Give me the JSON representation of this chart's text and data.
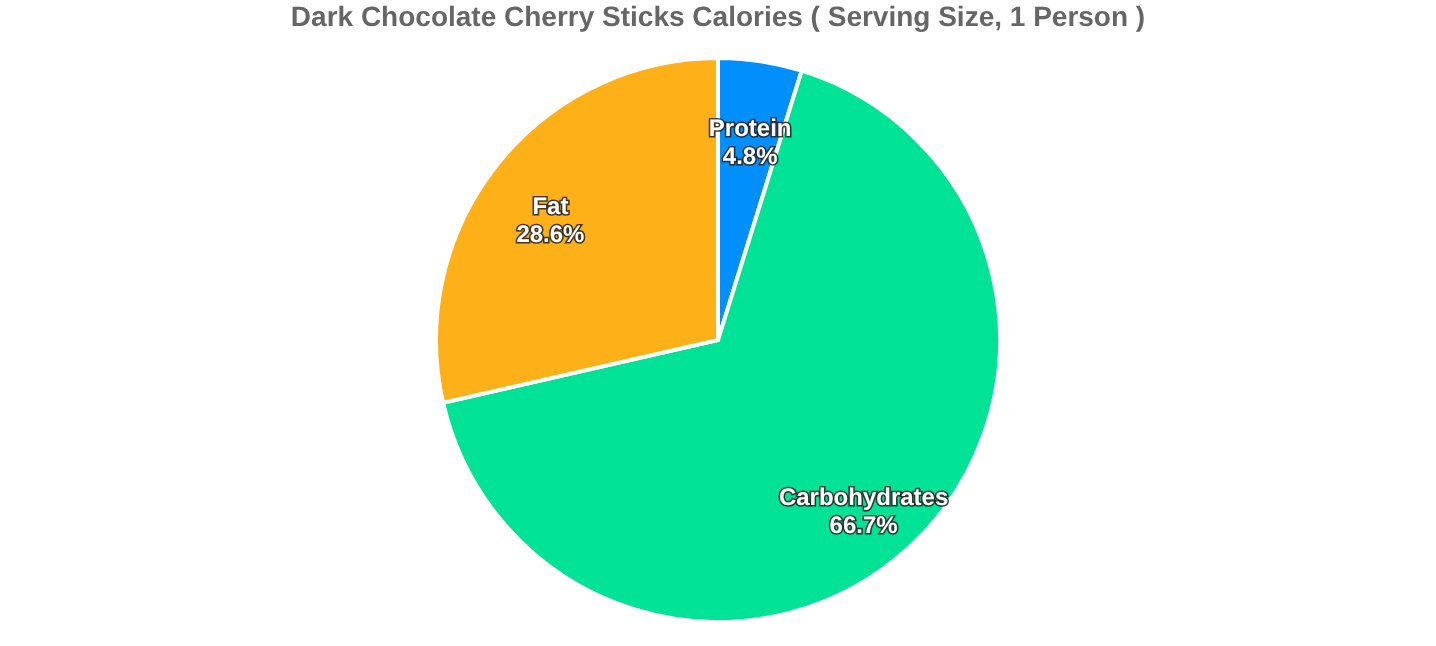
{
  "chart_data": {
    "type": "pie",
    "title": "Dark Chocolate Cherry Sticks Calories ( Serving Size, 1 Person )",
    "categories": [
      "Protein",
      "Carbohydrates",
      "Fat"
    ],
    "values": [
      4.8,
      66.7,
      28.6
    ],
    "colors": [
      "#008ffb",
      "#00e396",
      "#feb019"
    ],
    "value_labels": [
      "4.8%",
      "66.7%",
      "28.6%"
    ],
    "legend": false
  }
}
